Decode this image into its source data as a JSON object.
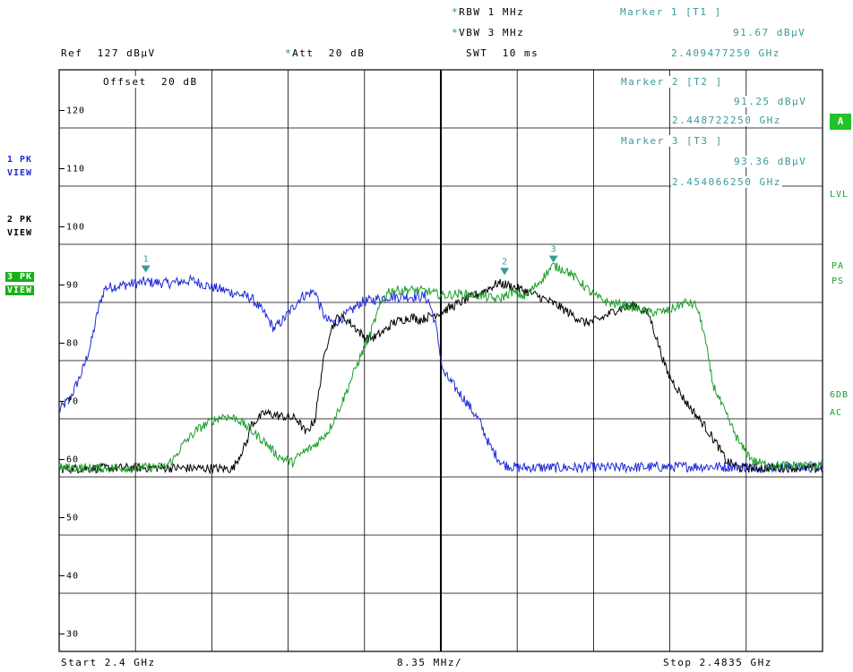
{
  "header": {
    "ref_label": "Ref",
    "ref_value": "127 dBµV",
    "att_label": "Att",
    "att_value": "20 dB",
    "rbw_label": "RBW",
    "rbw_value": "1 MHz",
    "vbw_label": "VBW",
    "vbw_value": "3 MHz",
    "swt_label": "SWT",
    "swt_value": "10 ms",
    "offset_label": "Offset",
    "offset_value": "20 dB"
  },
  "markers": [
    {
      "title": "Marker 1 [T1 ]",
      "level": "91.67 dBµV",
      "freq": "2.409477250 GHz"
    },
    {
      "title": "Marker 2 [T2 ]",
      "level": "91.25 dBµV",
      "freq": "2.448722250 GHz"
    },
    {
      "title": "Marker 3 [T3 ]",
      "level": "93.36 dBµV",
      "freq": "2.454066250 GHz"
    }
  ],
  "traces_legend": [
    {
      "line1": "1 PK",
      "line2": "VIEW"
    },
    {
      "line1": "2 PK",
      "line2": "VIEW"
    },
    {
      "line1": "3 PK",
      "line2": "VIEW"
    }
  ],
  "right_labels": {
    "a_box": "A",
    "lvl": "LVL",
    "pa": "PA",
    "ps": "PS",
    "db6": "6DB",
    "ac": "AC"
  },
  "footer": {
    "start": "Start 2.4 GHz",
    "span_per_div": "8.35 MHz/",
    "stop": "Stop 2.4835 GHz"
  },
  "colors": {
    "trace1": "#1f2bd8",
    "trace2": "#000000",
    "trace3": "#1aa02a",
    "marker": "#3a9a9a"
  },
  "chart_data": {
    "type": "line",
    "title": "",
    "xlabel": "",
    "ylabel": "",
    "x_unit": "GHz",
    "y_unit": "dBµV",
    "xlim": [
      2.4,
      2.4835
    ],
    "ylim": [
      27,
      127
    ],
    "y_ticks": [
      120,
      110,
      100,
      90,
      80,
      70,
      60,
      50,
      40,
      30
    ],
    "grid": true,
    "series": [
      {
        "name": "1 PK VIEW",
        "points": [
          [
            2.4,
            68.5
          ],
          [
            2.4012,
            70.5
          ],
          [
            2.4025,
            75
          ],
          [
            2.4035,
            80
          ],
          [
            2.4043,
            86
          ],
          [
            2.405,
            89.5
          ],
          [
            2.407,
            90
          ],
          [
            2.4095,
            90.5
          ],
          [
            2.412,
            90.3
          ],
          [
            2.4145,
            90.8
          ],
          [
            2.416,
            90
          ],
          [
            2.4175,
            89.3
          ],
          [
            2.419,
            88.7
          ],
          [
            2.421,
            87.8
          ],
          [
            2.4225,
            85
          ],
          [
            2.4235,
            82.5
          ],
          [
            2.4245,
            84
          ],
          [
            2.4255,
            86
          ],
          [
            2.4265,
            88
          ],
          [
            2.428,
            89
          ],
          [
            2.4285,
            86.5
          ],
          [
            2.4292,
            84
          ],
          [
            2.4302,
            83.5
          ],
          [
            2.4315,
            85
          ],
          [
            2.433,
            87
          ],
          [
            2.4345,
            87.5
          ],
          [
            2.436,
            88
          ],
          [
            2.438,
            88
          ],
          [
            2.44,
            88
          ],
          [
            2.4405,
            87
          ],
          [
            2.4412,
            83
          ],
          [
            2.442,
            75
          ],
          [
            2.443,
            73
          ],
          [
            2.4445,
            70
          ],
          [
            2.446,
            66.5
          ],
          [
            2.4472,
            62
          ],
          [
            2.4485,
            59.2
          ],
          [
            2.45,
            58.6
          ],
          [
            2.46,
            58.6
          ],
          [
            2.47,
            58.8
          ],
          [
            2.4835,
            58.6
          ]
        ]
      },
      {
        "name": "2 PK VIEW",
        "points": [
          [
            2.4,
            58.4
          ],
          [
            2.41,
            58.6
          ],
          [
            2.419,
            58.4
          ],
          [
            2.42,
            61.5
          ],
          [
            2.4205,
            62.8
          ],
          [
            2.421,
            66
          ],
          [
            2.4225,
            68
          ],
          [
            2.424,
            67.5
          ],
          [
            2.426,
            67
          ],
          [
            2.427,
            64.5
          ],
          [
            2.428,
            67
          ],
          [
            2.4288,
            76
          ],
          [
            2.4296,
            82
          ],
          [
            2.4305,
            84.5
          ],
          [
            2.4315,
            84
          ],
          [
            2.4325,
            82.5
          ],
          [
            2.4335,
            80.8
          ],
          [
            2.4345,
            81
          ],
          [
            2.4355,
            82
          ],
          [
            2.4365,
            83.5
          ],
          [
            2.4385,
            84.5
          ],
          [
            2.4395,
            84
          ],
          [
            2.442,
            85.5
          ],
          [
            2.4445,
            87.5
          ],
          [
            2.4465,
            89
          ],
          [
            2.448,
            90.3
          ],
          [
            2.449,
            90
          ],
          [
            2.451,
            89
          ],
          [
            2.4525,
            88
          ],
          [
            2.4545,
            86.5
          ],
          [
            2.456,
            85
          ],
          [
            2.4575,
            83.5
          ],
          [
            2.459,
            84
          ],
          [
            2.461,
            85.8
          ],
          [
            2.463,
            86.5
          ],
          [
            2.4645,
            85
          ],
          [
            2.4655,
            80
          ],
          [
            2.4665,
            75
          ],
          [
            2.4685,
            70
          ],
          [
            2.4705,
            66
          ],
          [
            2.472,
            62.5
          ],
          [
            2.473,
            59.7
          ],
          [
            2.4745,
            58.5
          ],
          [
            2.48,
            58.6
          ],
          [
            2.4835,
            58.4
          ]
        ]
      },
      {
        "name": "3 PK VIEW",
        "points": [
          [
            2.4,
            58.6
          ],
          [
            2.405,
            58.5
          ],
          [
            2.4115,
            58.7
          ],
          [
            2.4125,
            60
          ],
          [
            2.4135,
            62.5
          ],
          [
            2.415,
            65
          ],
          [
            2.4165,
            66.5
          ],
          [
            2.418,
            67.5
          ],
          [
            2.4195,
            67
          ],
          [
            2.421,
            65
          ],
          [
            2.4225,
            63
          ],
          [
            2.424,
            60.5
          ],
          [
            2.4255,
            59.5
          ],
          [
            2.4265,
            61
          ],
          [
            2.428,
            62.5
          ],
          [
            2.4295,
            65
          ],
          [
            2.431,
            70
          ],
          [
            2.4325,
            76
          ],
          [
            2.434,
            81.5
          ],
          [
            2.435,
            86
          ],
          [
            2.436,
            89
          ],
          [
            2.438,
            89.2
          ],
          [
            2.44,
            89
          ],
          [
            2.442,
            88.2
          ],
          [
            2.444,
            88.5
          ],
          [
            2.446,
            88.2
          ],
          [
            2.448,
            87.5
          ],
          [
            2.4495,
            88.8
          ],
          [
            2.451,
            88
          ],
          [
            2.4525,
            90.5
          ],
          [
            2.454,
            93.3
          ],
          [
            2.4555,
            92.5
          ],
          [
            2.457,
            90.5
          ],
          [
            2.4585,
            88.2
          ],
          [
            2.46,
            87
          ],
          [
            2.462,
            86.5
          ],
          [
            2.4645,
            85.3
          ],
          [
            2.4665,
            85.5
          ],
          [
            2.4685,
            87
          ],
          [
            2.4697,
            86.5
          ],
          [
            2.4705,
            82
          ],
          [
            2.4715,
            73
          ],
          [
            2.473,
            67.5
          ],
          [
            2.4745,
            62.5
          ],
          [
            2.476,
            59.7
          ],
          [
            2.4775,
            59
          ],
          [
            2.4835,
            59
          ]
        ]
      }
    ],
    "markers": [
      {
        "label": "1",
        "x": 2.409477,
        "y": 91.67
      },
      {
        "label": "2",
        "x": 2.448722,
        "y": 91.25
      },
      {
        "label": "3",
        "x": 2.454066,
        "y": 93.36
      }
    ]
  }
}
